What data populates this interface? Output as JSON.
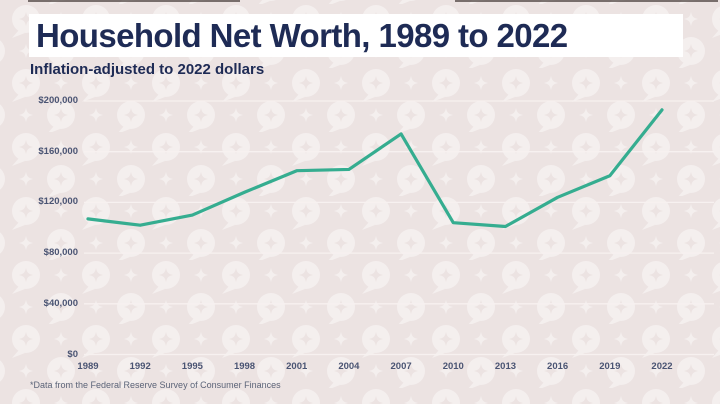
{
  "header": {
    "title": "Household Net Worth, 1989 to 2022",
    "subtitle": "Inflation-adjusted to 2022 dollars"
  },
  "footnote": "*Data from the Federal Reserve Survey of Consumer Finances",
  "colors": {
    "background": "#ece3e2",
    "highlight_bar": "#ffffff",
    "title_text": "#1e2b55",
    "axis_text": "#4a5473",
    "grid": "#f7f1f0",
    "line": "#35ad90",
    "watermark": "#f7f2f0"
  },
  "chart_data": {
    "type": "line",
    "title": "Household Net Worth, 1989 to 2022",
    "subtitle": "Inflation-adjusted to 2022 dollars",
    "source_note": "*Data from the Federal Reserve Survey of Consumer Finances",
    "categories": [
      "1989",
      "1992",
      "1995",
      "1998",
      "2001",
      "2004",
      "2007",
      "2010",
      "2013",
      "2016",
      "2019",
      "2022"
    ],
    "values": [
      107000,
      102000,
      110000,
      128000,
      145000,
      146000,
      174000,
      104000,
      101000,
      124000,
      141000,
      193000
    ],
    "xlabel": "",
    "ylabel": "",
    "ylim": [
      0,
      200000
    ],
    "ytick_step": 40000,
    "ytick_labels": [
      "$0",
      "$40,000",
      "$80,000",
      "$120,000",
      "$160,000",
      "$200,000"
    ],
    "grid": true,
    "legend": "none",
    "line_color": "#35ad90"
  }
}
